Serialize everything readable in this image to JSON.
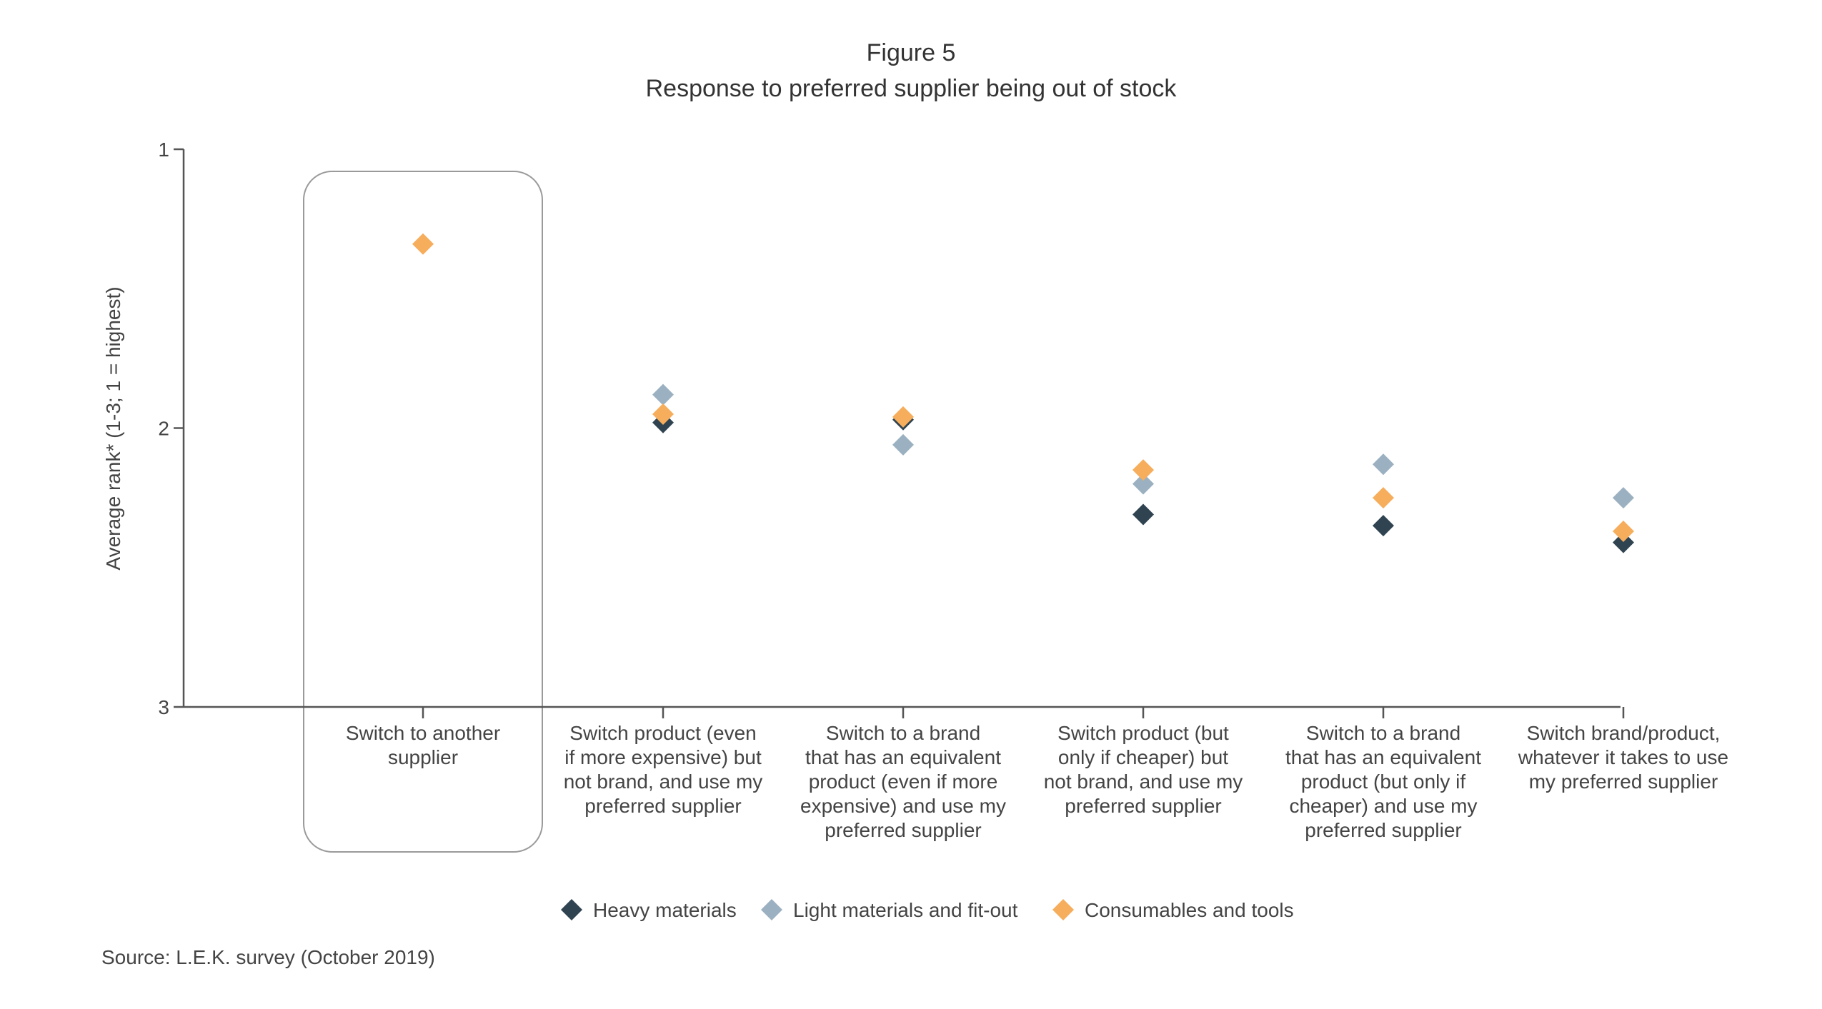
{
  "figure_label": "Figure 5",
  "title": "Response to preferred supplier being out of stock",
  "source": "Source: L.E.K. survey (October 2019)",
  "chart_data": {
    "type": "scatter",
    "ylabel": "Average rank* (1-3; 1 = highest)",
    "ylim": [
      1,
      3
    ],
    "y_inverted": true,
    "y_ticks": [
      "1",
      "2",
      "3"
    ],
    "grid": false,
    "legend_position": "bottom-center",
    "highlighted_category_index": 0,
    "categories": [
      [
        "Switch to another",
        "supplier"
      ],
      [
        "Switch product (even",
        "if more expensive) but",
        "not brand, and use my",
        "preferred supplier"
      ],
      [
        "Switch to a brand",
        "that has an equivalent",
        "product (even if more",
        "expensive) and use my",
        "preferred supplier"
      ],
      [
        "Switch product (but",
        "only if cheaper) but",
        "not brand, and use my",
        "preferred supplier"
      ],
      [
        "Switch to a brand",
        "that has an equivalent",
        "product (but only if",
        "cheaper) and use my",
        "preferred supplier"
      ],
      [
        "Switch brand/product,",
        "whatever it takes to use",
        "my preferred supplier"
      ]
    ],
    "series": [
      {
        "name": "Heavy materials",
        "color": "#2f4350",
        "values": [
          null,
          1.98,
          1.97,
          2.31,
          2.35,
          2.41
        ]
      },
      {
        "name": "Light materials and fit-out",
        "color": "#9bb1c1",
        "values": [
          null,
          1.88,
          2.06,
          2.2,
          2.13,
          2.25
        ]
      },
      {
        "name": "Consumables and tools",
        "color": "#f6ad5c",
        "values": [
          1.34,
          1.95,
          1.96,
          2.15,
          2.25,
          2.37
        ]
      }
    ]
  }
}
